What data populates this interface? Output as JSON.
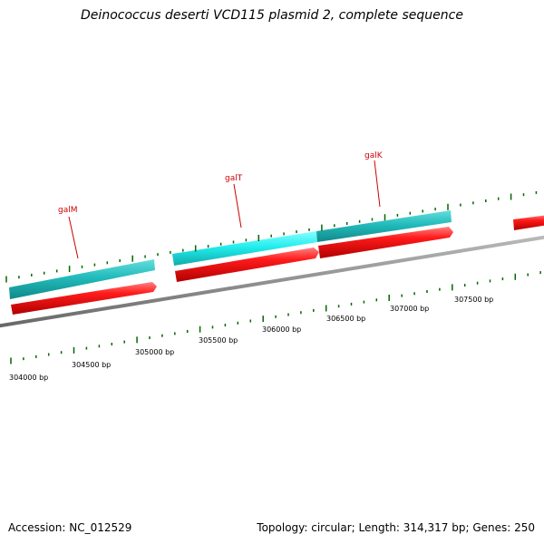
{
  "title": "Deinococcus deserti VCD115 plasmid 2, complete sequence",
  "footer": {
    "accession": "Accession: NC_012529",
    "summary": "Topology: circular; Length: 314,317 bp; Genes: 250"
  },
  "colors": {
    "backbone": "#8a8a8a",
    "gene_forward": "#e00000",
    "gene_cds_selected": "#33eeee",
    "gene_cds": "#22bbbb",
    "tick": "#006600",
    "gene_label": "#cc0000",
    "scale_label": "#000000"
  },
  "scale_labels": [
    "304000 bp",
    "304500 bp",
    "305000 bp",
    "305500 bp",
    "306000 bp",
    "306500 bp",
    "307000 bp",
    "307500 bp"
  ],
  "genes": [
    {
      "label": "galM"
    },
    {
      "label": "galT"
    },
    {
      "label": "galK"
    }
  ]
}
